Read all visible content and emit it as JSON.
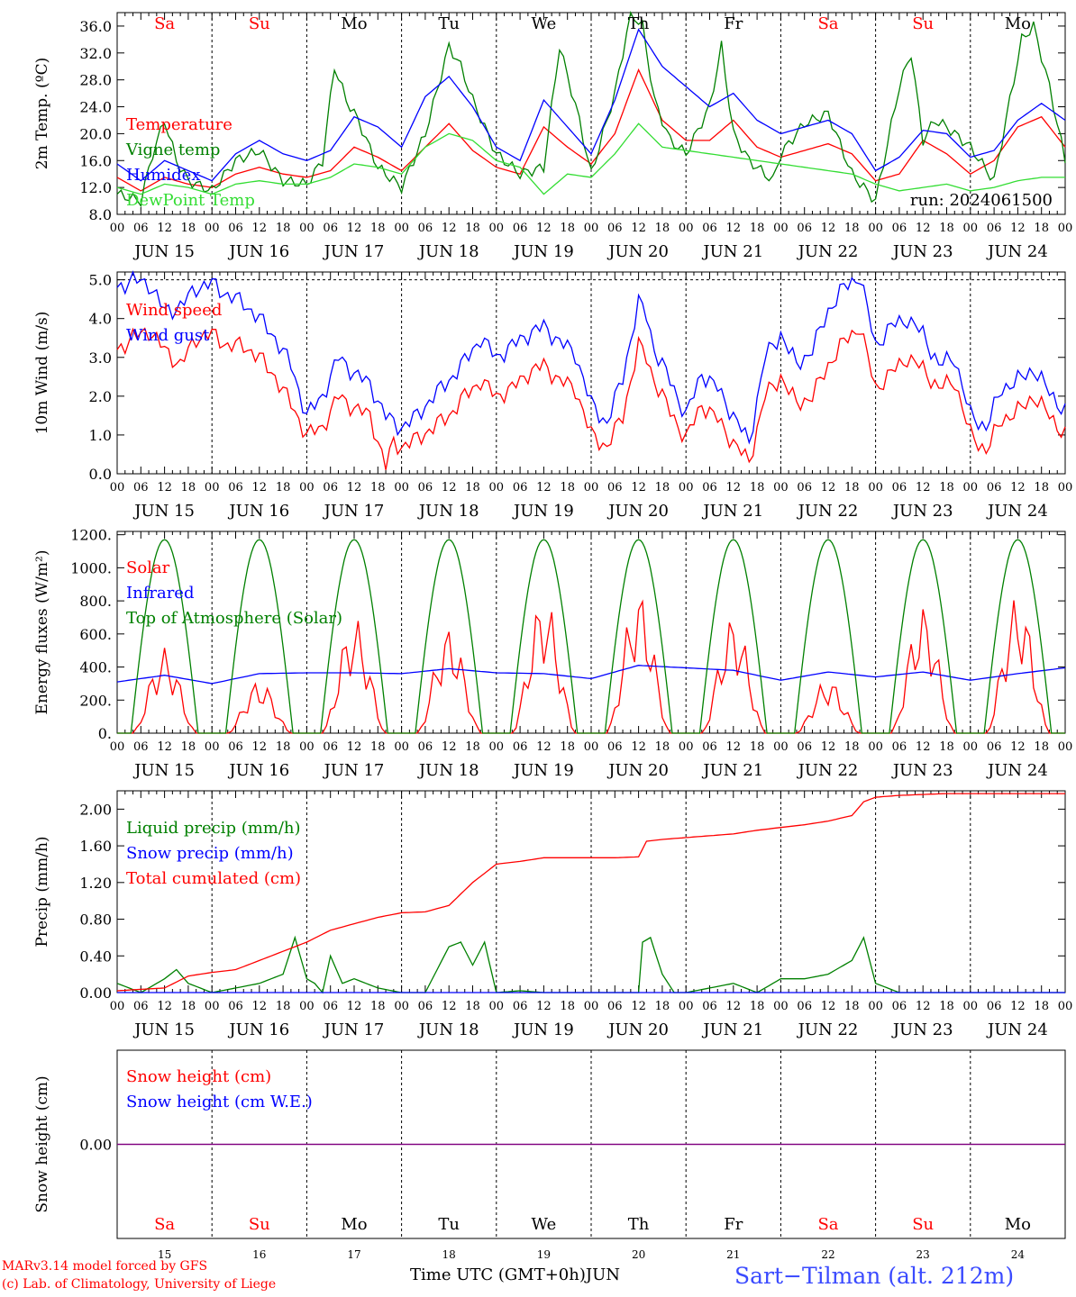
{
  "run_label": "run: 2024061500",
  "days": [
    {
      "dow": "Sa",
      "weekend": true,
      "date": "JUN 15",
      "num": "15"
    },
    {
      "dow": "Su",
      "weekend": true,
      "date": "JUN 16",
      "num": "16"
    },
    {
      "dow": "Mo",
      "weekend": false,
      "date": "JUN 17",
      "num": "17"
    },
    {
      "dow": "Tu",
      "weekend": false,
      "date": "JUN 18",
      "num": "18"
    },
    {
      "dow": "We",
      "weekend": false,
      "date": "JUN 19",
      "num": "19"
    },
    {
      "dow": "Th",
      "weekend": false,
      "date": "JUN 20",
      "num": "20"
    },
    {
      "dow": "Fr",
      "weekend": false,
      "date": "JUN 21",
      "num": "21"
    },
    {
      "dow": "Sa",
      "weekend": true,
      "date": "JUN 22",
      "num": "22"
    },
    {
      "dow": "Su",
      "weekend": true,
      "date": "JUN 23",
      "num": "23"
    },
    {
      "dow": "Mo",
      "weekend": false,
      "date": "JUN 24",
      "num": "24"
    }
  ],
  "hour_ticks": [
    "00",
    "06",
    "12",
    "18"
  ],
  "end_tick": "00",
  "colors": {
    "red": "#ff0000",
    "green": "#008000",
    "blue": "#0000ff",
    "lime": "#33dd33",
    "purple": "#800080",
    "site": "#3a4aff"
  },
  "footer": {
    "credit1": "MARv3.14 model forced by GFS",
    "credit2": "(c) Lab. of Climatology, University of Liege",
    "xlabel_time": "Time UTC (GMT+0h)",
    "xlabel_month": "JUN",
    "site": "Sart−Tilman (alt. 212m)"
  },
  "chart_data": [
    {
      "type": "line",
      "ylabel": "2m Temp. (ºC)",
      "ylim": [
        8,
        38
      ],
      "yticks": [
        "36.0",
        "32.0",
        "28.0",
        "24.0",
        "20.0",
        "16.0",
        "12.0",
        "8.0"
      ],
      "ytick_values": [
        36,
        32,
        28,
        24,
        20,
        16,
        12,
        8
      ],
      "x_unit": "hours since JUN 15 00 UTC",
      "series": [
        {
          "name": "Temperature",
          "color": "red",
          "x": [
            0,
            6,
            12,
            18,
            24,
            30,
            36,
            42,
            48,
            54,
            60,
            66,
            72,
            78,
            84,
            90,
            96,
            102,
            108,
            114,
            120,
            126,
            132,
            138,
            144,
            150,
            156,
            162,
            168,
            174,
            180,
            186,
            192,
            198,
            204,
            210,
            216,
            222,
            228,
            234,
            240
          ],
          "y": [
            13.5,
            11.5,
            13.5,
            12.5,
            12,
            14,
            15,
            14,
            13.5,
            14.5,
            18,
            16.5,
            14.5,
            18,
            21.5,
            17.5,
            15,
            14,
            21,
            18,
            15.5,
            20,
            29.5,
            22,
            19,
            19,
            22,
            18,
            16.5,
            17.5,
            18.5,
            17,
            13,
            14,
            19,
            17,
            14,
            16,
            21,
            22.5,
            18
          ]
        },
        {
          "name": "Vigne temp",
          "color": "green",
          "x": [
            0,
            6,
            9,
            12,
            15,
            18,
            24,
            30,
            36,
            42,
            48,
            52,
            55,
            58,
            61,
            66,
            72,
            78,
            84,
            87,
            90,
            96,
            102,
            108,
            112,
            117,
            120,
            126,
            130,
            133,
            136,
            140,
            144,
            150,
            153,
            156,
            160,
            166,
            168,
            174,
            180,
            186,
            192,
            198,
            201,
            204,
            207,
            210,
            216,
            222,
            226,
            229,
            232,
            236,
            240
          ],
          "y": [
            11,
            10,
            17,
            22,
            16,
            13,
            11.5,
            16,
            17.5,
            13,
            12.5,
            16,
            30,
            25,
            22,
            15,
            12,
            20,
            33,
            30,
            25,
            17,
            14,
            15,
            33,
            22,
            14,
            26,
            38,
            36,
            25,
            19,
            17,
            24,
            33,
            20,
            16,
            13,
            17,
            21.5,
            23,
            14,
            10,
            27,
            32,
            19,
            22,
            21,
            18,
            13,
            25,
            34,
            36,
            27,
            16
          ]
        },
        {
          "name": "Humidex",
          "color": "blue",
          "x": [
            0,
            6,
            12,
            18,
            24,
            30,
            36,
            42,
            48,
            54,
            60,
            66,
            72,
            78,
            84,
            90,
            96,
            102,
            108,
            114,
            120,
            126,
            132,
            138,
            144,
            150,
            156,
            162,
            168,
            174,
            180,
            186,
            192,
            198,
            204,
            210,
            216,
            222,
            228,
            234,
            240
          ],
          "y": [
            15.5,
            13,
            16,
            14.5,
            13,
            17,
            19,
            17,
            16,
            17.5,
            22.5,
            21,
            18,
            25.5,
            28.5,
            24,
            18,
            16,
            25,
            21,
            17,
            25,
            35.5,
            30,
            27,
            24,
            26,
            22,
            20,
            21,
            22,
            20,
            14.5,
            16.5,
            20.5,
            20,
            16.5,
            17.5,
            22,
            24.5,
            22
          ]
        },
        {
          "name": "DewPoint Temp",
          "color": "lime",
          "x": [
            0,
            6,
            12,
            18,
            24,
            30,
            36,
            42,
            48,
            54,
            60,
            66,
            72,
            78,
            84,
            90,
            96,
            102,
            108,
            114,
            120,
            126,
            132,
            138,
            144,
            150,
            156,
            162,
            168,
            174,
            180,
            186,
            192,
            198,
            204,
            210,
            216,
            222,
            228,
            234,
            240
          ],
          "y": [
            12,
            11,
            12.5,
            12,
            11,
            12.5,
            13,
            12.5,
            12.5,
            13.5,
            15.5,
            15,
            14,
            18,
            20,
            19,
            16,
            15,
            11,
            14,
            13.5,
            17,
            21.5,
            18,
            17.5,
            17,
            16.5,
            16,
            15.5,
            15,
            14.5,
            14,
            12.5,
            11.5,
            12,
            12.5,
            11.5,
            12,
            13,
            13.5,
            13.5
          ]
        }
      ]
    },
    {
      "type": "line",
      "ylabel": "10m Wind (m/s)",
      "ylim": [
        0,
        5.2
      ],
      "yticks": [
        "5.0",
        "4.0",
        "3.0",
        "2.0",
        "1.0",
        "0.0"
      ],
      "ytick_values": [
        5,
        4,
        3,
        2,
        1,
        0
      ],
      "ref_line": 5.0,
      "series": [
        {
          "name": "Wind speed",
          "color": "red",
          "x": [
            0,
            4,
            8,
            12,
            16,
            20,
            24,
            28,
            32,
            36,
            40,
            44,
            48,
            52,
            56,
            60,
            64,
            68,
            70,
            72,
            76,
            80,
            84,
            88,
            92,
            96,
            100,
            104,
            108,
            112,
            116,
            120,
            124,
            128,
            132,
            134,
            136,
            140,
            144,
            148,
            152,
            156,
            160,
            164,
            168,
            172,
            176,
            180,
            184,
            188,
            192,
            196,
            200,
            204,
            208,
            212,
            216,
            220,
            224,
            228,
            232,
            236,
            240
          ],
          "y": [
            3.2,
            3.5,
            3.7,
            3.2,
            2.8,
            3.5,
            3.6,
            3.3,
            3.3,
            3.0,
            2.5,
            1.8,
            1.0,
            1.2,
            2.0,
            1.7,
            1.5,
            0.2,
            0.8,
            0.7,
            0.9,
            1.2,
            1.5,
            2.0,
            2.4,
            2.0,
            2.2,
            2.6,
            2.8,
            2.4,
            2.2,
            1.0,
            0.7,
            1.5,
            3.3,
            3.0,
            2.4,
            1.6,
            0.9,
            1.8,
            1.4,
            0.8,
            0.3,
            2.0,
            2.5,
            1.8,
            2.0,
            2.8,
            3.4,
            3.8,
            2.2,
            2.6,
            3.0,
            2.7,
            2.2,
            2.4,
            1.0,
            0.6,
            1.4,
            1.6,
            2.0,
            1.5,
            1.0
          ]
        },
        {
          "name": "Wind gust",
          "color": "blue",
          "x": [
            0,
            4,
            8,
            12,
            16,
            20,
            24,
            28,
            32,
            36,
            40,
            44,
            48,
            52,
            56,
            60,
            64,
            68,
            70,
            72,
            76,
            80,
            84,
            88,
            92,
            96,
            100,
            104,
            108,
            112,
            116,
            120,
            124,
            128,
            132,
            134,
            136,
            140,
            144,
            148,
            152,
            156,
            160,
            164,
            168,
            172,
            176,
            180,
            184,
            188,
            192,
            196,
            200,
            204,
            208,
            212,
            216,
            220,
            224,
            228,
            232,
            236,
            240
          ],
          "y": [
            4.8,
            5.0,
            4.9,
            4.2,
            4.3,
            4.8,
            4.9,
            4.6,
            4.4,
            4.0,
            3.5,
            2.8,
            1.5,
            2.0,
            3.0,
            2.6,
            2.3,
            1.5,
            1.3,
            1.2,
            1.5,
            2.0,
            2.4,
            2.9,
            3.5,
            3.0,
            3.3,
            3.6,
            3.8,
            3.4,
            3.1,
            1.8,
            1.3,
            2.5,
            4.4,
            4.1,
            3.2,
            2.4,
            1.5,
            2.6,
            2.2,
            1.5,
            0.8,
            3.0,
            3.6,
            2.8,
            3.2,
            4.2,
            4.8,
            5.1,
            3.3,
            3.8,
            4.0,
            3.6,
            2.8,
            3.0,
            1.5,
            1.2,
            2.2,
            2.4,
            2.7,
            2.1,
            1.6
          ]
        }
      ]
    },
    {
      "type": "line",
      "ylabel": "Energy fluxes (W/m²)",
      "ylim": [
        0,
        1220
      ],
      "yticks": [
        "1200.",
        "1000.",
        "800.",
        "600.",
        "400.",
        "200.",
        "0."
      ],
      "ytick_values": [
        1200,
        1000,
        800,
        600,
        400,
        200,
        0
      ],
      "toa_peak": 1170,
      "toa_daylight": [
        3.5,
        20.5
      ],
      "solar_peaks": [
        515,
        320,
        700,
        640,
        830,
        860,
        710,
        330,
        770,
        830
      ],
      "series": [
        {
          "name": "Solar",
          "color": "red"
        },
        {
          "name": "Infrared",
          "color": "blue",
          "x": [
            0,
            12,
            24,
            36,
            48,
            60,
            72,
            84,
            96,
            108,
            120,
            132,
            144,
            156,
            168,
            180,
            192,
            204,
            216,
            228,
            240
          ],
          "y": [
            310,
            350,
            300,
            360,
            365,
            365,
            360,
            390,
            365,
            360,
            330,
            410,
            395,
            380,
            320,
            370,
            340,
            370,
            320,
            360,
            395
          ]
        },
        {
          "name": "Top of Atmosphere (Solar)",
          "color": "green"
        }
      ]
    },
    {
      "type": "line",
      "ylabel": "Precip (mm/h)",
      "ylim": [
        0,
        2.2
      ],
      "yticks": [
        "2.00",
        "1.60",
        "1.20",
        "0.80",
        "0.40",
        "0.00"
      ],
      "ytick_values": [
        2.0,
        1.6,
        1.2,
        0.8,
        0.4,
        0.0
      ],
      "series": [
        {
          "name": "Liquid precip (mm/h)",
          "color": "green",
          "x": [
            0,
            3,
            6,
            12,
            15,
            18,
            21,
            24,
            30,
            36,
            42,
            45,
            48,
            50,
            52,
            54,
            57,
            60,
            66,
            72,
            78,
            84,
            87,
            90,
            93,
            96,
            102,
            108,
            114,
            120,
            126,
            132,
            133,
            135,
            138,
            141,
            144,
            150,
            156,
            162,
            168,
            174,
            180,
            186,
            189,
            192,
            198,
            204,
            210,
            216,
            222,
            228,
            234,
            240
          ],
          "y": [
            0.1,
            0.05,
            0.0,
            0.15,
            0.25,
            0.1,
            0.05,
            0.0,
            0.05,
            0.1,
            0.2,
            0.6,
            0.15,
            0.1,
            0.0,
            0.4,
            0.1,
            0.15,
            0.05,
            0.0,
            0.0,
            0.5,
            0.55,
            0.3,
            0.55,
            0.0,
            0.02,
            0.0,
            0.0,
            0.0,
            0.0,
            0.0,
            0.55,
            0.6,
            0.2,
            0.0,
            0.0,
            0.05,
            0.1,
            0.0,
            0.15,
            0.15,
            0.2,
            0.35,
            0.6,
            0.1,
            0.0,
            0.0,
            0.0,
            0.0,
            0.0,
            0.0,
            0.0,
            0.0
          ]
        },
        {
          "name": "Snow precip (mm/h)",
          "color": "blue",
          "x": [
            0,
            240
          ],
          "y": [
            0,
            0
          ]
        },
        {
          "name": "Total cumulated (cm)",
          "color": "red",
          "x": [
            0,
            12,
            18,
            24,
            30,
            36,
            42,
            48,
            54,
            60,
            66,
            72,
            78,
            84,
            90,
            96,
            102,
            108,
            114,
            120,
            126,
            132,
            134,
            138,
            144,
            150,
            156,
            162,
            168,
            174,
            180,
            186,
            189,
            192,
            198,
            204,
            210,
            216,
            222,
            228,
            234,
            240
          ],
          "y": [
            0.02,
            0.05,
            0.18,
            0.22,
            0.25,
            0.35,
            0.45,
            0.55,
            0.68,
            0.75,
            0.82,
            0.87,
            0.88,
            0.95,
            1.2,
            1.4,
            1.43,
            1.47,
            1.47,
            1.47,
            1.47,
            1.48,
            1.65,
            1.67,
            1.69,
            1.71,
            1.73,
            1.77,
            1.8,
            1.83,
            1.87,
            1.93,
            2.08,
            2.13,
            2.15,
            2.16,
            2.17,
            2.17,
            2.17,
            2.17,
            2.17,
            2.17
          ]
        }
      ]
    },
    {
      "type": "line",
      "ylabel": "Snow height (cm)",
      "ylim": [
        -1,
        1
      ],
      "yticks": [
        "0.00"
      ],
      "ytick_values": [
        0
      ],
      "series": [
        {
          "name": "Snow height (cm)",
          "color": "red",
          "x": [
            0,
            240
          ],
          "y": [
            0,
            0
          ]
        },
        {
          "name": "Snow height (cm W.E.)",
          "color": "blue",
          "x": [
            0,
            240
          ],
          "y": [
            0,
            0
          ]
        }
      ]
    }
  ]
}
